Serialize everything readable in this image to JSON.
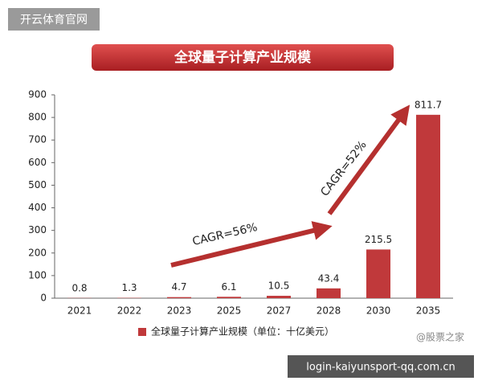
{
  "watermark_top": "开云体育官网",
  "watermark_bottom": "login-kaiyunsport-qq.com.cn",
  "watermark_source": "@股票之家",
  "chart_data": {
    "type": "bar",
    "title": "全球量子计算产业规模",
    "categories": [
      "2021",
      "2022",
      "2023",
      "2025",
      "2027",
      "2028",
      "2030",
      "2035"
    ],
    "series": [
      {
        "name": "全球量子计算产业规模（单位：十亿美元）",
        "color": "#c0393b",
        "values": [
          0.8,
          1.3,
          4.7,
          6.1,
          10.5,
          43.4,
          215.5,
          811.7
        ]
      }
    ],
    "ylim": [
      0,
      900
    ],
    "yticks": [
      0,
      100,
      200,
      300,
      400,
      500,
      600,
      700,
      800,
      900
    ],
    "grid": false,
    "annotations": [
      "CAGR=56%",
      "CAGR=52%"
    ]
  }
}
